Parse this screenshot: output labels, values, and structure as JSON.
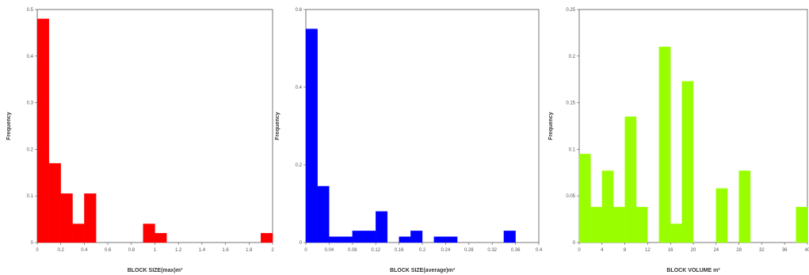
{
  "chart_data": [
    {
      "type": "bar",
      "title": "",
      "xlabel": "BLOCK SIZE(max)m³",
      "ylabel": "Frequency",
      "xlim": [
        0,
        2
      ],
      "ylim": [
        0,
        0.5
      ],
      "color": "#ff0000",
      "xticks": [
        "0",
        "0.2",
        "0.4",
        "0.6",
        "0.8",
        "1",
        "1.2",
        "1.4",
        "1.6",
        "1.8",
        "2"
      ],
      "yticks": [
        "0",
        "0.1",
        "0.2",
        "0.3",
        "0.4",
        "0.5"
      ],
      "bin_width": 0.1,
      "bin_starts": [
        0,
        0.1,
        0.2,
        0.3,
        0.4,
        0.5,
        0.6,
        0.7,
        0.8,
        0.9,
        1.0,
        1.1,
        1.2,
        1.3,
        1.4,
        1.5,
        1.6,
        1.7,
        1.8,
        1.9
      ],
      "values": [
        0.48,
        0.17,
        0.105,
        0.04,
        0.105,
        0,
        0,
        0,
        0,
        0.04,
        0.02,
        0,
        0,
        0,
        0,
        0,
        0,
        0,
        0,
        0.02
      ]
    },
    {
      "type": "bar",
      "title": "",
      "xlabel": "BLOCK SIZE(average)m³",
      "ylabel": "Frequency",
      "xlim": [
        0,
        0.4
      ],
      "ylim": [
        0,
        0.6
      ],
      "color": "#0000ff",
      "xticks": [
        "0",
        "0.04",
        "0.08",
        "0.12",
        "0.16",
        "0.2",
        "0.24",
        "0.28",
        "0.32",
        "0.36",
        "0.4"
      ],
      "yticks": [
        "0",
        "0.2",
        "0.4",
        "0.6"
      ],
      "bin_width": 0.02,
      "bin_starts": [
        0,
        0.02,
        0.04,
        0.06,
        0.08,
        0.1,
        0.12,
        0.14,
        0.16,
        0.18,
        0.2,
        0.22,
        0.24,
        0.26,
        0.28,
        0.3,
        0.32,
        0.34,
        0.36,
        0.38
      ],
      "values": [
        0.55,
        0.145,
        0.015,
        0.015,
        0.03,
        0.03,
        0.08,
        0,
        0.015,
        0.03,
        0,
        0.015,
        0.015,
        0,
        0,
        0,
        0,
        0.03,
        0,
        0
      ]
    },
    {
      "type": "bar",
      "title": "",
      "xlabel": "BLOCK VOLUME m³",
      "ylabel": "Frequency",
      "xlim": [
        0,
        40
      ],
      "ylim": [
        0,
        0.25
      ],
      "color": "#99ff00",
      "xticks": [
        "0",
        "4",
        "8",
        "12",
        "16",
        "20",
        "24",
        "28",
        "32",
        "36",
        "40"
      ],
      "yticks": [
        "0",
        "0.05",
        "0.1",
        "0.15",
        "0.2",
        "0.25"
      ],
      "bin_width": 2,
      "bin_starts": [
        0,
        2,
        4,
        6,
        8,
        10,
        12,
        14,
        16,
        18,
        20,
        22,
        24,
        26,
        28,
        30,
        32,
        34,
        36,
        38
      ],
      "values": [
        0.095,
        0.038,
        0.077,
        0.038,
        0.135,
        0.038,
        0,
        0.21,
        0.02,
        0.173,
        0,
        0,
        0.058,
        0,
        0.077,
        0,
        0,
        0,
        0,
        0.038
      ]
    }
  ]
}
